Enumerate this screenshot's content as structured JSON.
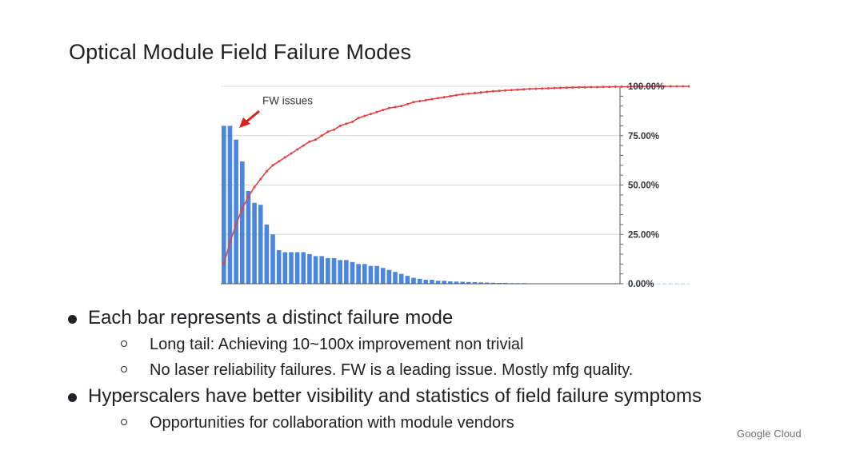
{
  "slide": {
    "title": "Optical Module Field Failure Modes",
    "brand": "Google Cloud"
  },
  "bullets": [
    {
      "text": "Each bar represents a distinct failure mode",
      "sub": [
        "Long tail: Achieving 10~100x improvement non trivial",
        "No laser reliability failures. FW is a leading issue. Mostly mfg quality."
      ]
    },
    {
      "text": "Hyperscalers have better visibility and statistics of field failure symptoms",
      "sub": [
        "Opportunities for collaboration with module vendors"
      ]
    }
  ],
  "chart_data": {
    "type": "bar",
    "title": "",
    "xlabel": "",
    "ylabel": "",
    "bar_color": "#4a86e0",
    "line_color": "#e34242",
    "grid": true,
    "ylim": [
      0,
      100
    ],
    "y2lim": [
      0,
      1
    ],
    "y2_ticks": [
      "0.00%",
      "25.00%",
      "50.00%",
      "75.00%",
      "100.00%"
    ],
    "annotation": {
      "text": "FW issues",
      "color": "#e0201b"
    },
    "series": [
      {
        "kind": "bar",
        "values": [
          80,
          80,
          73,
          62,
          47,
          41,
          40,
          30,
          25,
          17,
          16,
          16,
          16,
          16,
          15,
          14,
          14,
          13,
          13,
          12,
          12,
          11,
          10,
          10,
          9,
          9,
          8,
          7,
          6,
          5,
          4,
          3,
          2.5,
          2,
          2,
          1.5,
          1.5,
          1.2,
          1.1,
          1,
          0.9,
          0.8,
          0.7,
          0.6,
          0.5,
          0.4,
          0.4,
          0.3,
          0.3,
          0.3,
          0.2,
          0.2,
          0.2,
          0.2,
          0.1,
          0.1,
          0.1,
          0.1,
          0.1,
          0.1,
          0.1,
          0.1,
          0.1,
          0.05,
          0.05,
          0.05,
          0.05,
          0.05,
          0.05,
          0.05,
          0.05,
          0.05,
          0.05,
          0.05,
          0.05,
          0.05,
          0.05,
          0.05,
          0.05
        ]
      },
      {
        "kind": "line",
        "axis": "right",
        "values": [
          0.1,
          0.21,
          0.3,
          0.38,
          0.44,
          0.49,
          0.53,
          0.57,
          0.6,
          0.62,
          0.64,
          0.66,
          0.68,
          0.7,
          0.72,
          0.73,
          0.75,
          0.77,
          0.78,
          0.8,
          0.81,
          0.82,
          0.84,
          0.85,
          0.86,
          0.87,
          0.88,
          0.89,
          0.895,
          0.9,
          0.91,
          0.92,
          0.925,
          0.93,
          0.935,
          0.94,
          0.945,
          0.95,
          0.955,
          0.96,
          0.963,
          0.966,
          0.969,
          0.972,
          0.975,
          0.977,
          0.979,
          0.981,
          0.983,
          0.985,
          0.987,
          0.988,
          0.989,
          0.99,
          0.991,
          0.992,
          0.993,
          0.994,
          0.995,
          0.995,
          0.996,
          0.996,
          0.997,
          0.997,
          0.998,
          0.998,
          0.998,
          0.999,
          0.999,
          0.999,
          0.999,
          1.0,
          1.0,
          1.0,
          1.0,
          1.0,
          1.0,
          1.0,
          1.0
        ]
      }
    ]
  }
}
